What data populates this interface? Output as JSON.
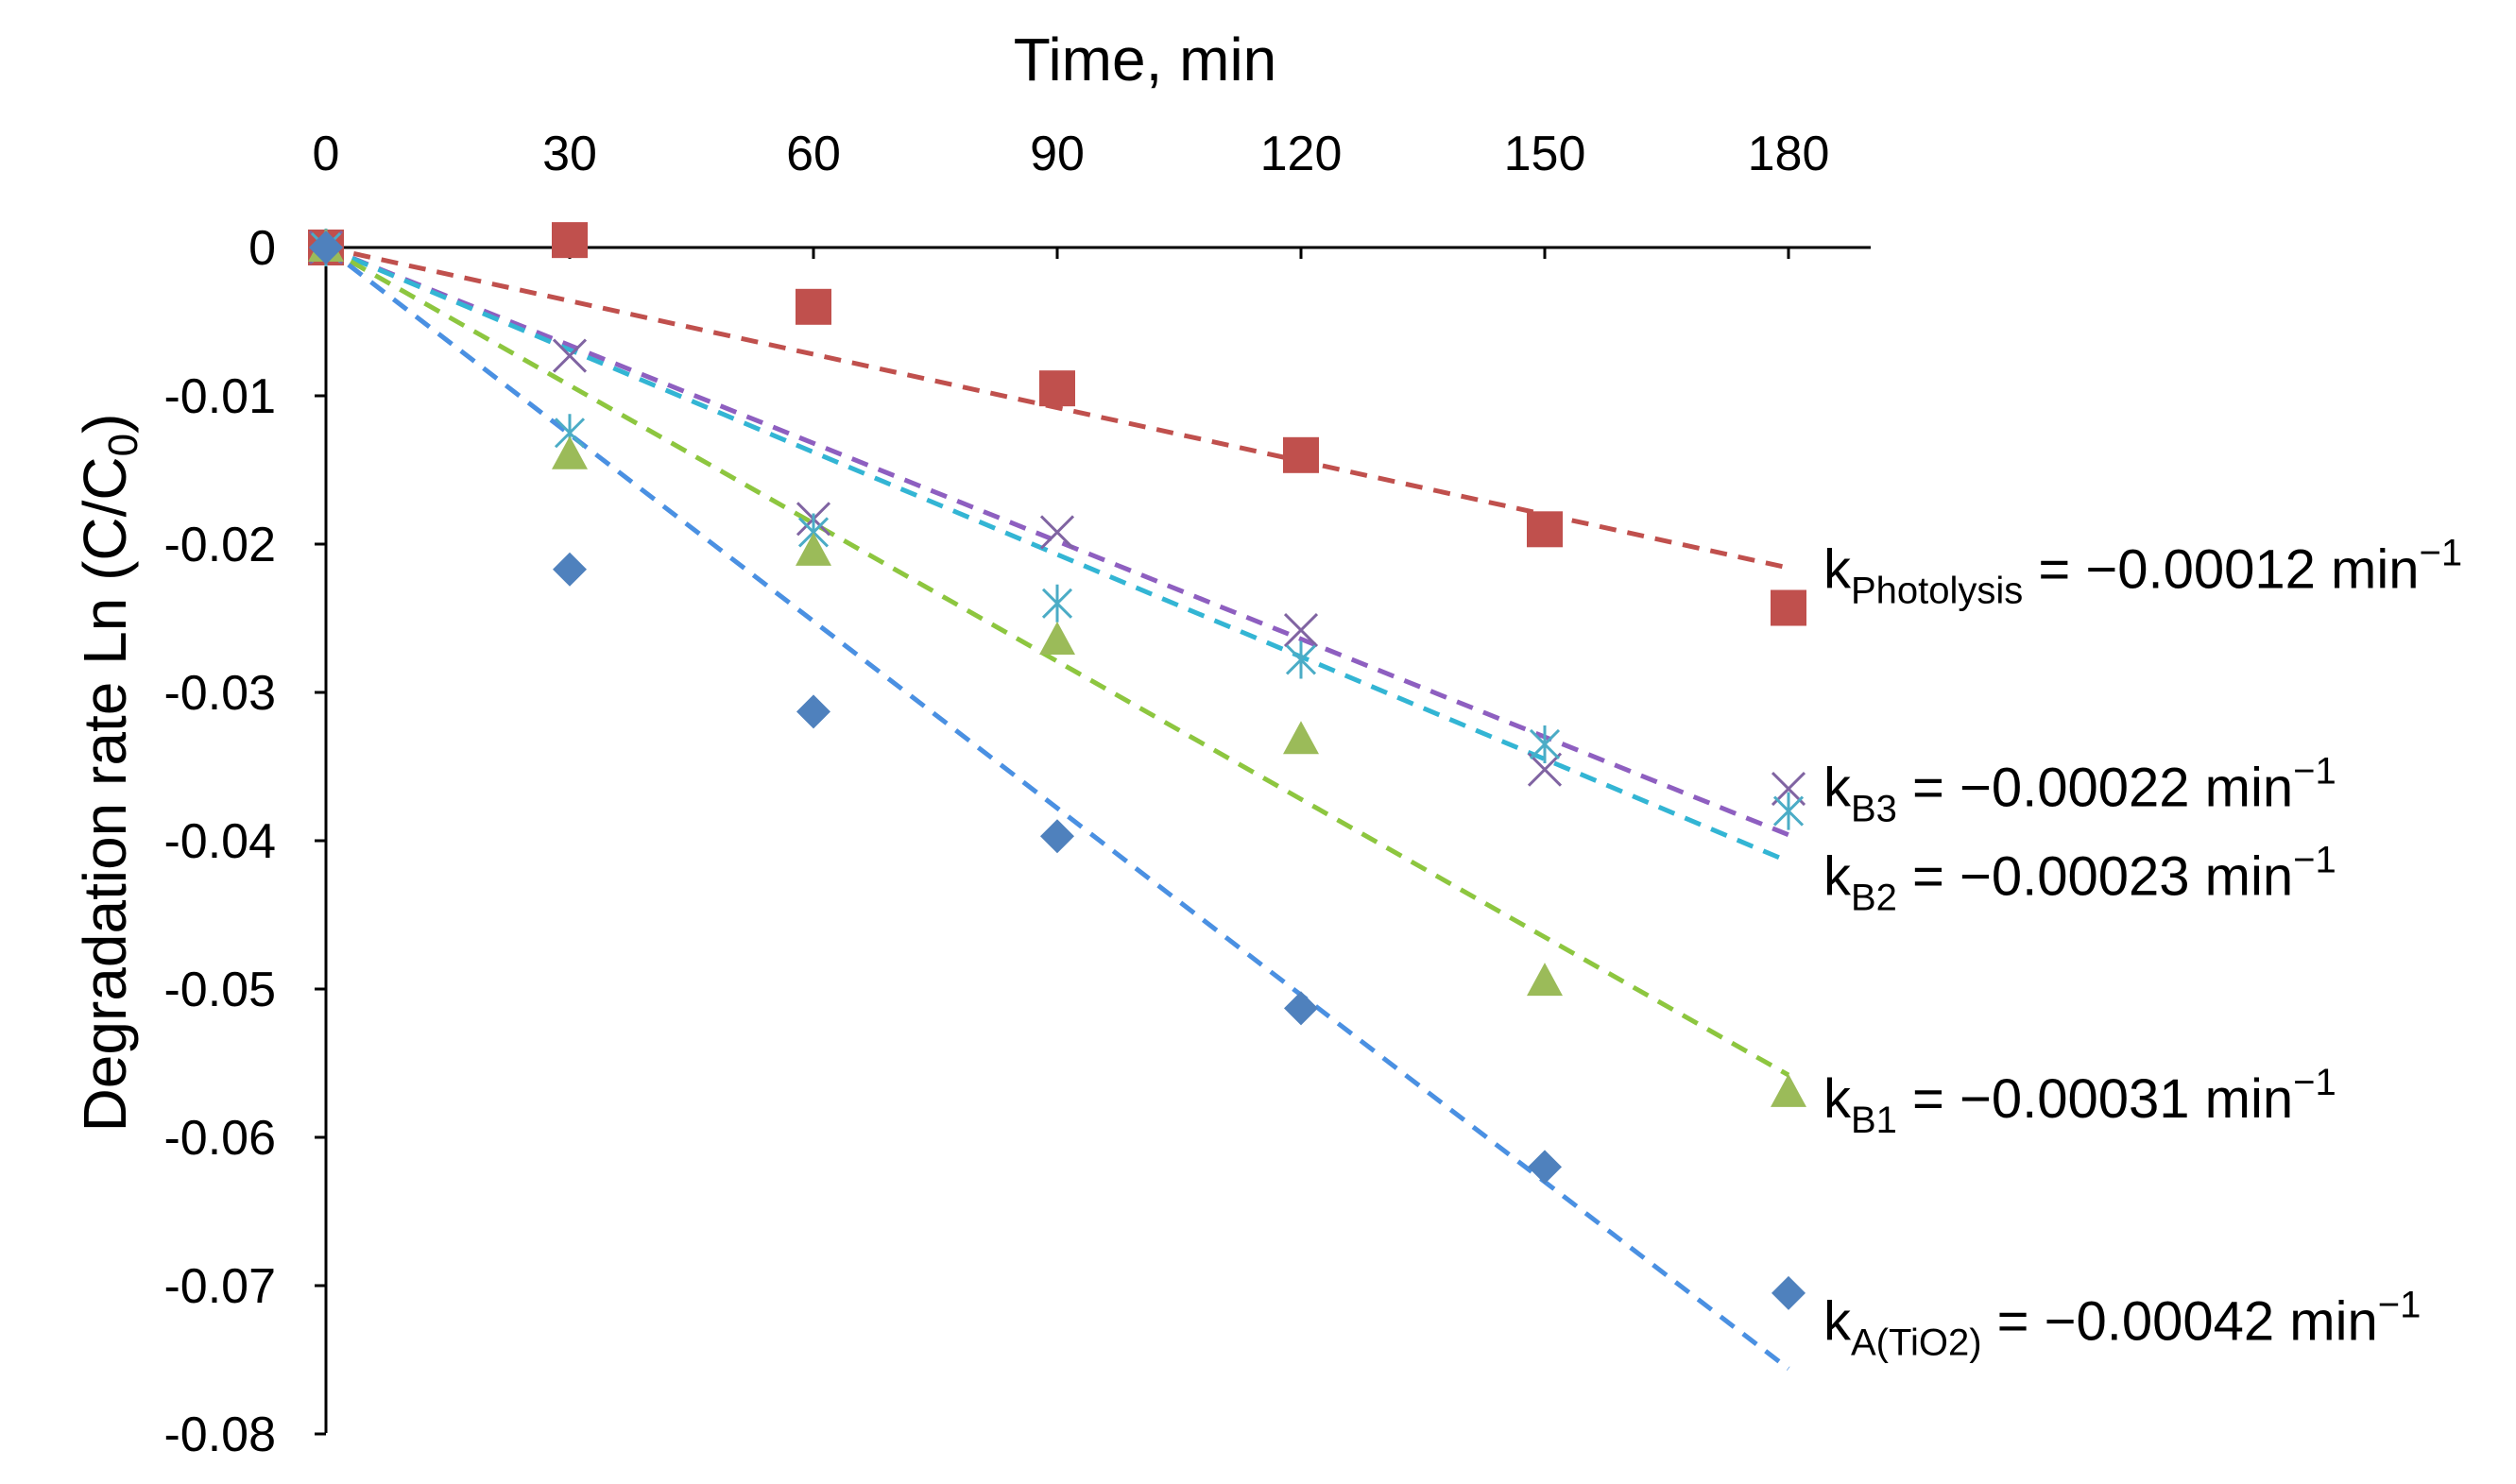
{
  "chart_data": {
    "type": "scatter",
    "title": "",
    "xlabel": "Time, min",
    "ylabel_prefix": "Degradation rate Ln (C/C",
    "ylabel_sub": "0",
    "ylabel_suffix": ")",
    "xlim": [
      0,
      190
    ],
    "ylim": [
      -0.08,
      0
    ],
    "x_ticks": [
      0,
      30,
      60,
      90,
      120,
      150,
      180
    ],
    "y_ticks": [
      0,
      -0.01,
      -0.02,
      -0.03,
      -0.04,
      -0.05,
      -0.06,
      -0.07,
      -0.08
    ],
    "x_tick_labels": [
      "0",
      "30",
      "60",
      "90",
      "120",
      "150",
      "180"
    ],
    "y_tick_labels": [
      "0",
      "-0.01",
      "-0.02",
      "-0.03",
      "-0.04",
      "-0.05",
      "-0.06",
      "-0.07",
      "-0.08"
    ],
    "x_axis_position": "top",
    "grid": false,
    "x": [
      0,
      30,
      60,
      90,
      120,
      150,
      180
    ],
    "series": [
      {
        "name": "Photolysis",
        "marker": "square",
        "color": "#C0504D",
        "values": [
          0,
          0.0005,
          -0.004,
          -0.0095,
          -0.014,
          -0.019,
          -0.0243
        ],
        "trend_slope": -0.00012,
        "label_k": "k",
        "label_sub": "Photolysis",
        "label_rest": " = −0.00012 min",
        "label_sup": "−1"
      },
      {
        "name": "B3",
        "marker": "x",
        "color": "#8064A2",
        "trend_color": "#8E5FC0",
        "values": [
          0,
          -0.0073,
          -0.0183,
          -0.0192,
          -0.0258,
          -0.0352,
          -0.0365
        ],
        "trend_slope": -0.00022,
        "label_k": "k",
        "label_sub": "B3",
        "label_rest": " = −0.00022 min",
        "label_sup": "−1"
      },
      {
        "name": "B2",
        "marker": "asterisk",
        "color": "#4BACC6",
        "trend_color": "#33B5D4",
        "values": [
          0,
          -0.0125,
          -0.0192,
          -0.024,
          -0.0278,
          -0.0335,
          -0.038
        ],
        "trend_slope": -0.00023,
        "label_k": "k",
        "label_sub": "B2",
        "label_rest": " = −0.00023 min",
        "label_sup": "−1"
      },
      {
        "name": "B1",
        "marker": "triangle",
        "color": "#9BBB59",
        "trend_color": "#8DC63F",
        "values": [
          0,
          -0.014,
          -0.0205,
          -0.0265,
          -0.0332,
          -0.0495,
          -0.057
        ],
        "trend_slope": -0.00031,
        "label_k": "k",
        "label_sub": "B1",
        "label_rest": " = −0.00031 min",
        "label_sup": "−1"
      },
      {
        "name": "A(TiO2)",
        "marker": "diamond",
        "color": "#4F81BD",
        "trend_color": "#4A90E2",
        "values": [
          0,
          -0.0217,
          -0.0313,
          -0.0397,
          -0.0513,
          -0.062,
          -0.0705
        ],
        "trend_slope": -0.00042,
        "label_k": "k",
        "label_sub": "A(TiO2)",
        "label_rest": " = −0.00042 min",
        "label_sup": "−1"
      }
    ]
  }
}
